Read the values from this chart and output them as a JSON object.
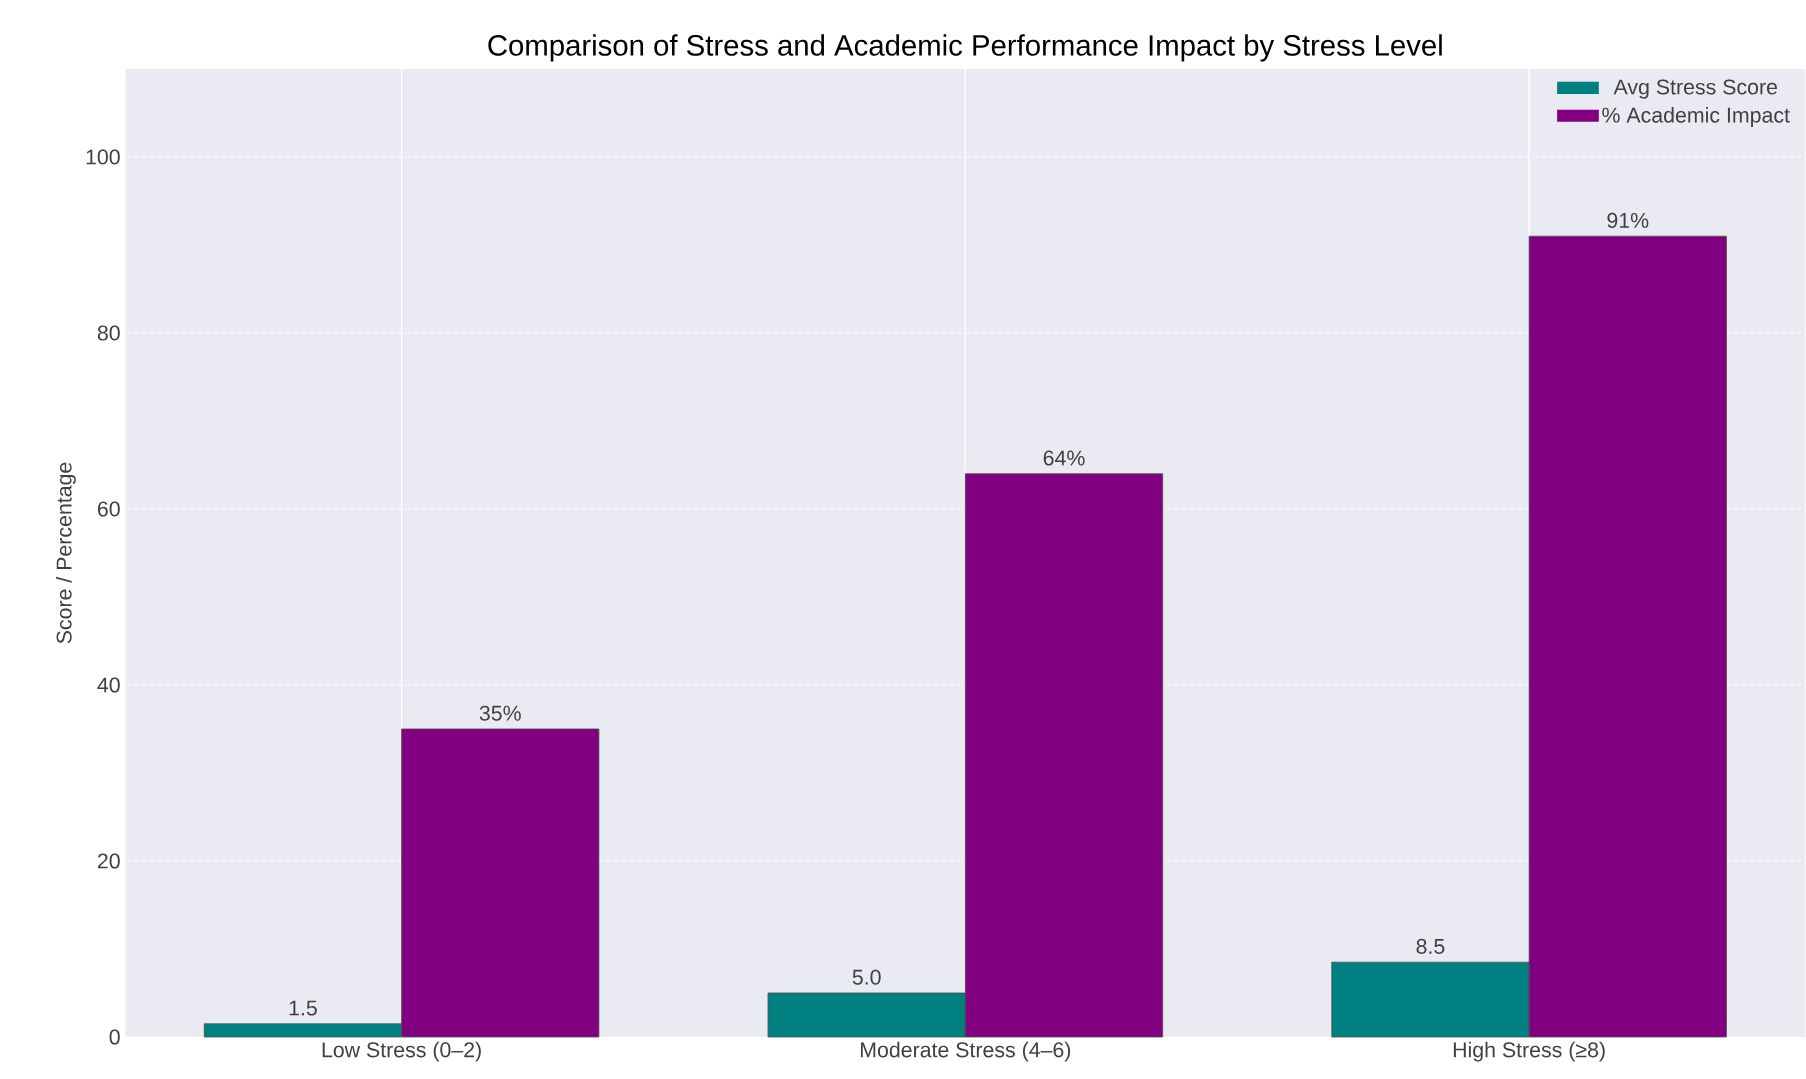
{
  "chart_data": {
    "type": "bar",
    "title": "Comparison of Stress and Academic Performance Impact by Stress Level",
    "ylabel": "Score / Percentage",
    "categories": [
      "Low Stress (0–2)",
      "Moderate Stress (4–6)",
      "High Stress (≥8)"
    ],
    "series": [
      {
        "name": "Avg Stress Score",
        "color": "#008080",
        "values": [
          1.5,
          5.0,
          8.5
        ],
        "value_labels": [
          "1.5",
          "5.0",
          "8.5"
        ]
      },
      {
        "name": "% Academic Impact",
        "color": "#800080",
        "values": [
          35,
          64,
          91
        ],
        "value_labels": [
          "35%",
          "64%",
          "91%"
        ]
      }
    ],
    "ylim": [
      0,
      110
    ],
    "yticks": [
      0,
      20,
      40,
      60,
      80,
      100
    ],
    "grid": true,
    "legend": "top right"
  }
}
